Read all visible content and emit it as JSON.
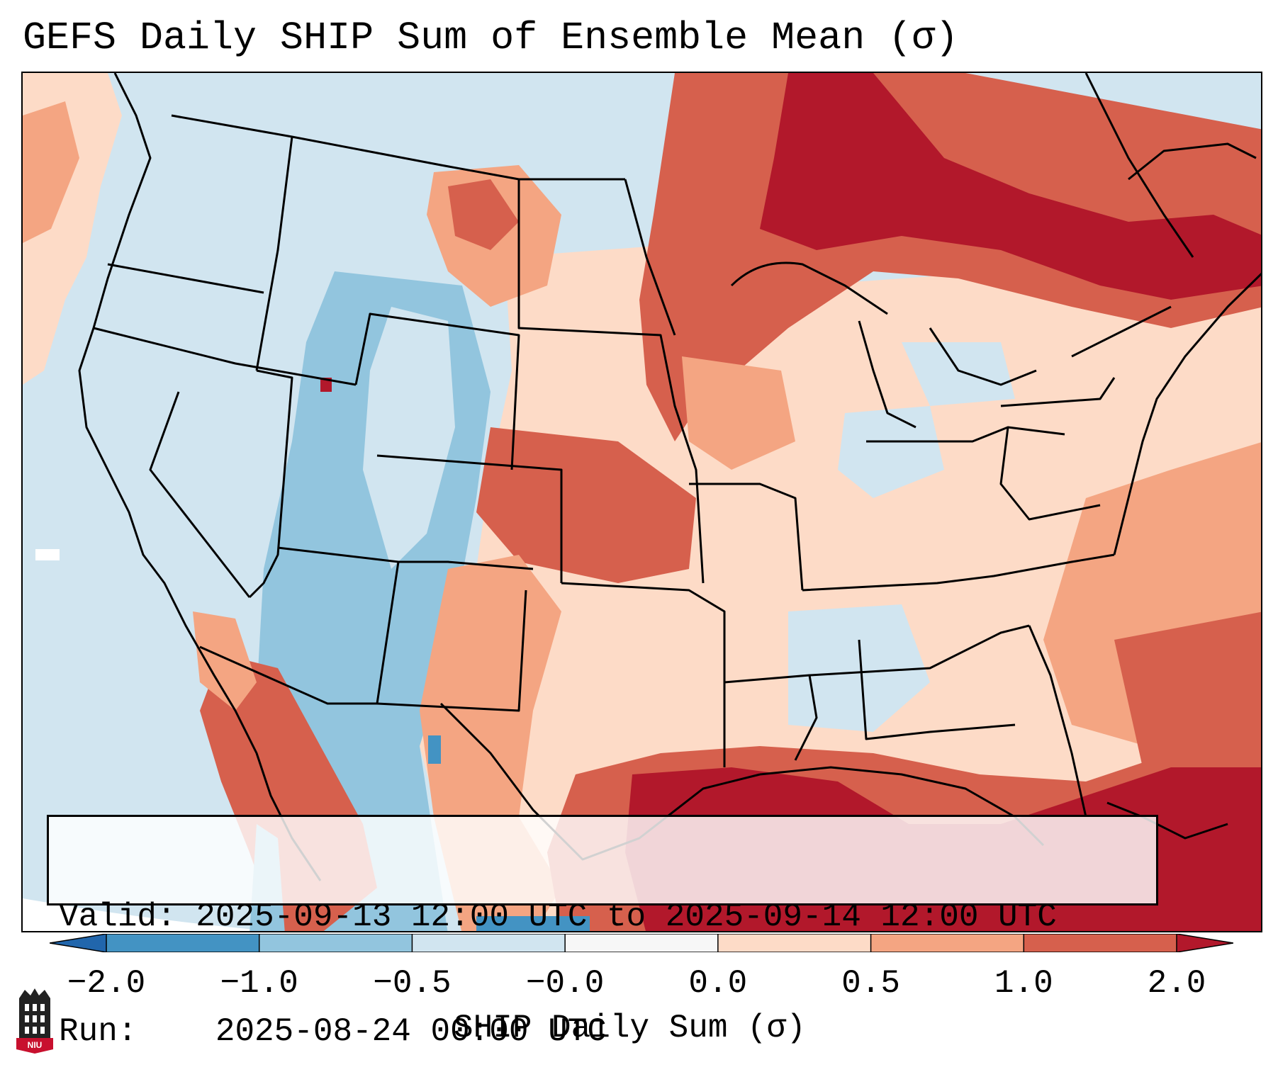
{
  "title": "GEFS Daily SHIP Sum of Ensemble Mean (σ)",
  "info": {
    "valid_label": "Valid:",
    "valid_value": "2025-09-13 12:00 UTC to 2025-09-14 12:00 UTC",
    "run_label": "Run:",
    "run_value": "2025-08-24 00:00 UTC"
  },
  "colorbar": {
    "label": "SHIP Daily Sum (σ)",
    "ticks": [
      "−2.0",
      "−1.0",
      "−0.5",
      "−0.0",
      "0.0",
      "0.5",
      "1.0",
      "2.0"
    ],
    "bins": [
      {
        "range": "-2.0 to -1.0",
        "color": "#4393c3"
      },
      {
        "range": "-1.0 to -0.5",
        "color": "#92c5de"
      },
      {
        "range": "-0.5 to -0.0",
        "color": "#d1e5f0"
      },
      {
        "range": "-0.0 to 0.0",
        "color": "#f7f7f7"
      },
      {
        "range": "0.0 to 0.5",
        "color": "#fddbc7"
      },
      {
        "range": "0.5 to 1.0",
        "color": "#f4a582"
      },
      {
        "range": "1.0 to 2.0",
        "color": "#d6604d"
      }
    ],
    "under_color": "#2166ac",
    "over_color": "#b2182b"
  },
  "logo": {
    "text": "NIU"
  }
}
